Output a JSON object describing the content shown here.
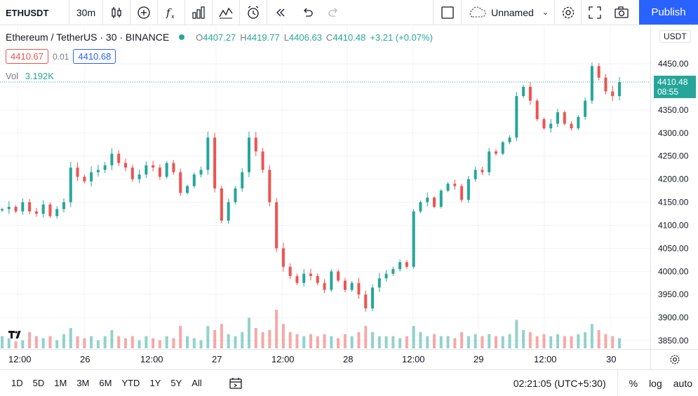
{
  "toolbar": {
    "symbol": "ETHUSDT",
    "timeframe": "30m",
    "layout_name": "Unnamed",
    "publish_label": "Publish",
    "icons": [
      "candles-icon",
      "add-indicator-icon",
      "fx-icon",
      "bar-chart-icon",
      "compare-icon",
      "alert-icon",
      "replay-icon",
      "undo-icon",
      "redo-icon",
      "layout-icon",
      "cloud-icon",
      "settings-icon",
      "fullscreen-icon",
      "camera-icon"
    ]
  },
  "legend": {
    "name": "Ethereum / TetherUS · 30 · BINANCE",
    "open_label": "O",
    "open": "4407.27",
    "high_label": "H",
    "high": "4419.77",
    "low_label": "L",
    "low": "4406.63",
    "close_label": "C",
    "close": "4410.48",
    "change": "+3.21 (+0.07%)",
    "bid": "4410.67",
    "spread": "0.01",
    "ask": "4410.68",
    "vol_label": "Vol",
    "vol_value": "3.192K"
  },
  "price_scale": {
    "currency": "USDT",
    "labels": [
      "4450.00",
      "4400.00",
      "4350.00",
      "4300.00",
      "4250.00",
      "4200.00",
      "4150.00",
      "4100.00",
      "4050.00",
      "4000.00",
      "3950.00",
      "3900.00",
      "3850.00"
    ],
    "last_price": "4410.48",
    "countdown": "08:55"
  },
  "time_scale": {
    "labels": [
      "12:00",
      "26",
      "12:00",
      "27",
      "12:00",
      "28",
      "12:00",
      "29",
      "12:00",
      "30"
    ]
  },
  "bottombar": {
    "ranges": [
      "1D",
      "5D",
      "1M",
      "3M",
      "6M",
      "YTD",
      "1Y",
      "5Y",
      "All"
    ],
    "clock": "02:21:05 (UTC+5:30)",
    "percent": "%",
    "log": "log",
    "auto": "auto"
  },
  "colors": {
    "up": "#26a69a",
    "down": "#ef5350",
    "accent": "#2962ff",
    "grid": "#f0f3fa"
  },
  "chart_data": {
    "type": "candlestick",
    "ylim": [
      3830,
      4470
    ],
    "close_path": [
      4135,
      4140,
      4130,
      4150,
      4130,
      4125,
      4145,
      4120,
      4135,
      4150,
      4225,
      4205,
      4195,
      4215,
      4220,
      4230,
      4255,
      4235,
      4225,
      4200,
      4210,
      4230,
      4225,
      4205,
      4235,
      4215,
      4170,
      4185,
      4210,
      4220,
      4290,
      4180,
      4110,
      4150,
      4180,
      4215,
      4290,
      4260,
      4220,
      4150,
      4050,
      4010,
      3990,
      3975,
      3995,
      3990,
      3975,
      3960,
      4000,
      3980,
      3960,
      3975,
      3950,
      3920,
      3965,
      3985,
      3995,
      4005,
      4020,
      4010,
      4130,
      4150,
      4160,
      4140,
      4175,
      4190,
      4185,
      4155,
      4200,
      4220,
      4215,
      4260,
      4255,
      4280,
      4290,
      4380,
      4400,
      4370,
      4330,
      4310,
      4320,
      4345,
      4320,
      4310,
      4335,
      4370,
      4445,
      4420,
      4390,
      4380,
      4410
    ],
    "volume_rel": [
      0.3,
      0.25,
      0.35,
      0.2,
      0.4,
      0.3,
      0.25,
      0.3,
      0.2,
      0.35,
      0.5,
      0.3,
      0.25,
      0.3,
      0.2,
      0.3,
      0.45,
      0.3,
      0.25,
      0.3,
      0.2,
      0.3,
      0.25,
      0.2,
      0.3,
      0.25,
      0.55,
      0.3,
      0.25,
      0.2,
      0.55,
      0.45,
      0.6,
      0.35,
      0.3,
      0.4,
      0.75,
      0.5,
      0.4,
      0.45,
      0.95,
      0.6,
      0.4,
      0.35,
      0.3,
      0.35,
      0.3,
      0.35,
      0.3,
      0.25,
      0.35,
      0.3,
      0.4,
      0.55,
      0.4,
      0.3,
      0.3,
      0.3,
      0.25,
      0.3,
      0.55,
      0.4,
      0.3,
      0.35,
      0.3,
      0.3,
      0.25,
      0.4,
      0.3,
      0.35,
      0.3,
      0.35,
      0.3,
      0.3,
      0.35,
      0.7,
      0.45,
      0.4,
      0.3,
      0.35,
      0.3,
      0.35,
      0.3,
      0.3,
      0.35,
      0.4,
      0.6,
      0.45,
      0.35,
      0.3,
      0.25
    ]
  }
}
